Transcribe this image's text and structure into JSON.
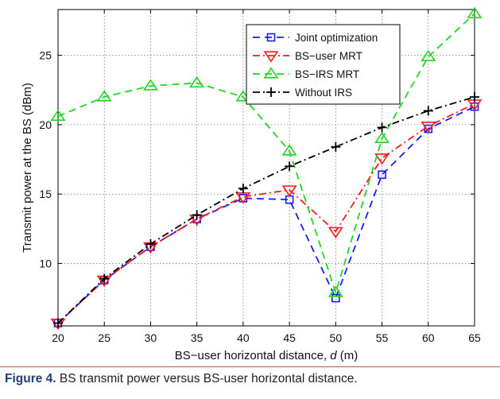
{
  "chart_data": {
    "type": "line",
    "title": "",
    "xlabel": "BS−user horizontal distance, ",
    "xlabel_var": "d",
    "xlabel_unit": " (m)",
    "ylabel": "Transmit power at the BS (dBm)",
    "x": [
      20,
      25,
      30,
      35,
      40,
      45,
      50,
      55,
      60,
      65
    ],
    "xlim": [
      20,
      65
    ],
    "ylim": [
      5.5,
      28.3
    ],
    "xticks": [
      "20",
      "25",
      "30",
      "35",
      "40",
      "45",
      "50",
      "55",
      "60",
      "65"
    ],
    "yticks": [
      10,
      15,
      20,
      25
    ],
    "ytick_labels": [
      "10",
      "15",
      "20",
      "25"
    ],
    "grid": true,
    "legend_position": "top-right",
    "series": [
      {
        "name": "Joint optimization",
        "color": "#1a1aff",
        "dash": "dashed",
        "marker": "square",
        "values": [
          5.7,
          8.8,
          11.2,
          13.2,
          14.7,
          14.6,
          7.5,
          16.4,
          19.7,
          21.3
        ]
      },
      {
        "name": "BS−user MRT",
        "color": "#ff1a1a",
        "dash": "dashdot",
        "marker": "triangle-down",
        "values": [
          5.7,
          8.8,
          11.2,
          13.2,
          14.8,
          15.3,
          12.3,
          17.6,
          19.9,
          21.5
        ]
      },
      {
        "name": "BS−IRS MRT",
        "color": "#1ad91a",
        "dash": "dashed",
        "marker": "triangle-up",
        "values": [
          20.6,
          22.0,
          22.8,
          23.0,
          22.0,
          18.1,
          7.9,
          19.0,
          24.9,
          28.0
        ]
      },
      {
        "name": "Without IRS",
        "color": "#000000",
        "dash": "dashdot",
        "marker": "plus",
        "values": [
          5.7,
          8.9,
          11.4,
          13.5,
          15.4,
          17.0,
          18.4,
          19.8,
          21.0,
          22.0
        ]
      }
    ]
  },
  "caption": {
    "label": "Figure 4.",
    "text": " BS transmit power versus BS-user horizontal distance."
  }
}
